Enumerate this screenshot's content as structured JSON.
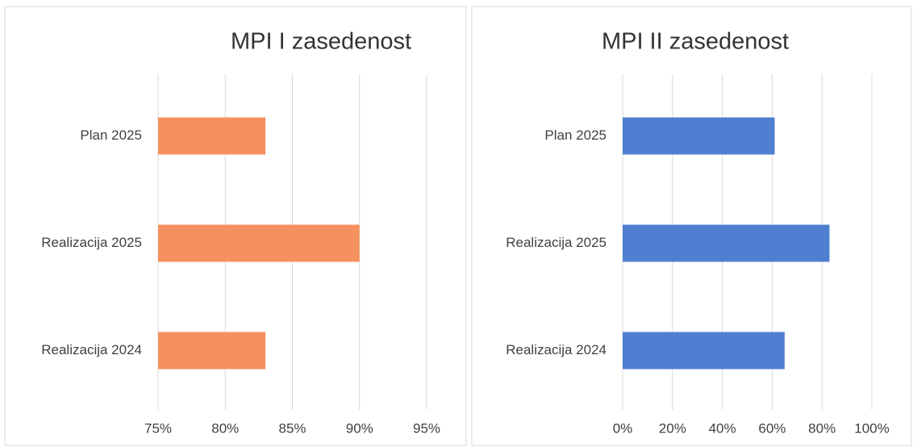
{
  "chart_data": [
    {
      "type": "barh",
      "title": "MPI I zasedenost",
      "categories": [
        "Plan 2025",
        "Realizacija 2025",
        "Realizacija 2024"
      ],
      "values": [
        83,
        90,
        83
      ],
      "color": "#f4915e",
      "xlim": [
        75,
        95
      ],
      "xticks": [
        {
          "value": 75,
          "label": "75%"
        },
        {
          "value": 80,
          "label": "80%"
        },
        {
          "value": 85,
          "label": "85%"
        },
        {
          "value": 90,
          "label": "90%"
        },
        {
          "value": 95,
          "label": "95%"
        }
      ],
      "grid": true
    },
    {
      "type": "barh",
      "title": "MPI II zasedenost",
      "categories": [
        "Plan 2025",
        "Realizacija 2025",
        "Realizacija 2024"
      ],
      "values": [
        61,
        83,
        65
      ],
      "color": "#4f7fd0",
      "xlim": [
        0,
        100
      ],
      "xticks": [
        {
          "value": 0,
          "label": "0%"
        },
        {
          "value": 20,
          "label": "20%"
        },
        {
          "value": 40,
          "label": "40%"
        },
        {
          "value": 60,
          "label": "60%"
        },
        {
          "value": 80,
          "label": "80%"
        },
        {
          "value": 100,
          "label": "100%"
        }
      ],
      "grid": true
    }
  ]
}
